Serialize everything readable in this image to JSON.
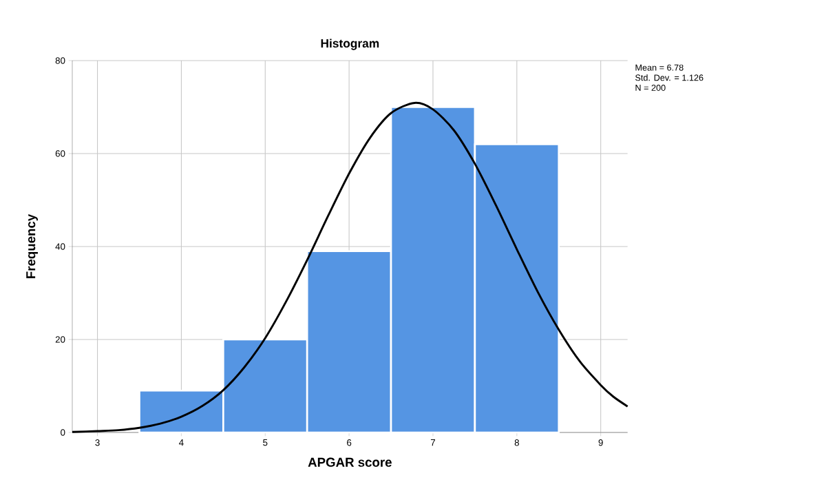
{
  "chart_data": {
    "type": "histogram",
    "title": "Histogram",
    "xlabel": "APGAR score",
    "ylabel": "Frequency",
    "bins": [
      3.5,
      4.5,
      5.5,
      6.5,
      7.5,
      8.5
    ],
    "values": [
      9,
      20,
      39,
      70,
      62
    ],
    "color": "#5595e3",
    "series": [
      {
        "type": "line",
        "color": "#000000",
        "x": [
          2.7,
          3,
          3.25,
          3.5,
          3.75,
          4,
          4.25,
          4.5,
          4.75,
          5,
          5.25,
          5.5,
          5.75,
          6,
          6.25,
          6.5,
          6.78,
          7,
          7.25,
          7.5,
          7.75,
          8,
          8.25,
          8.5,
          8.75,
          9,
          9.15,
          9.32
        ],
        "values": [
          0.1,
          0.3,
          0.5,
          1.0,
          1.9,
          3.4,
          5.7,
          9.1,
          14.0,
          20.3,
          28.2,
          37.1,
          46.6,
          55.7,
          63.4,
          68.7,
          70.9,
          69.5,
          65.0,
          57.8,
          48.9,
          39.4,
          30.2,
          22.1,
          15.3,
          10.2,
          7.7,
          5.6
        ]
      }
    ],
    "xlim": [
      2.7,
      9.32
    ],
    "ylim": [
      0,
      80
    ],
    "xticks": [
      3,
      4,
      5,
      6,
      7,
      8,
      9
    ],
    "yticks": [
      0,
      20,
      40,
      60,
      80
    ],
    "grid": true,
    "marker": "none",
    "line_style": "solid",
    "annotations": [
      "Mean = 6.78",
      "Std. Dev. = 1.126",
      "N = 200"
    ]
  }
}
